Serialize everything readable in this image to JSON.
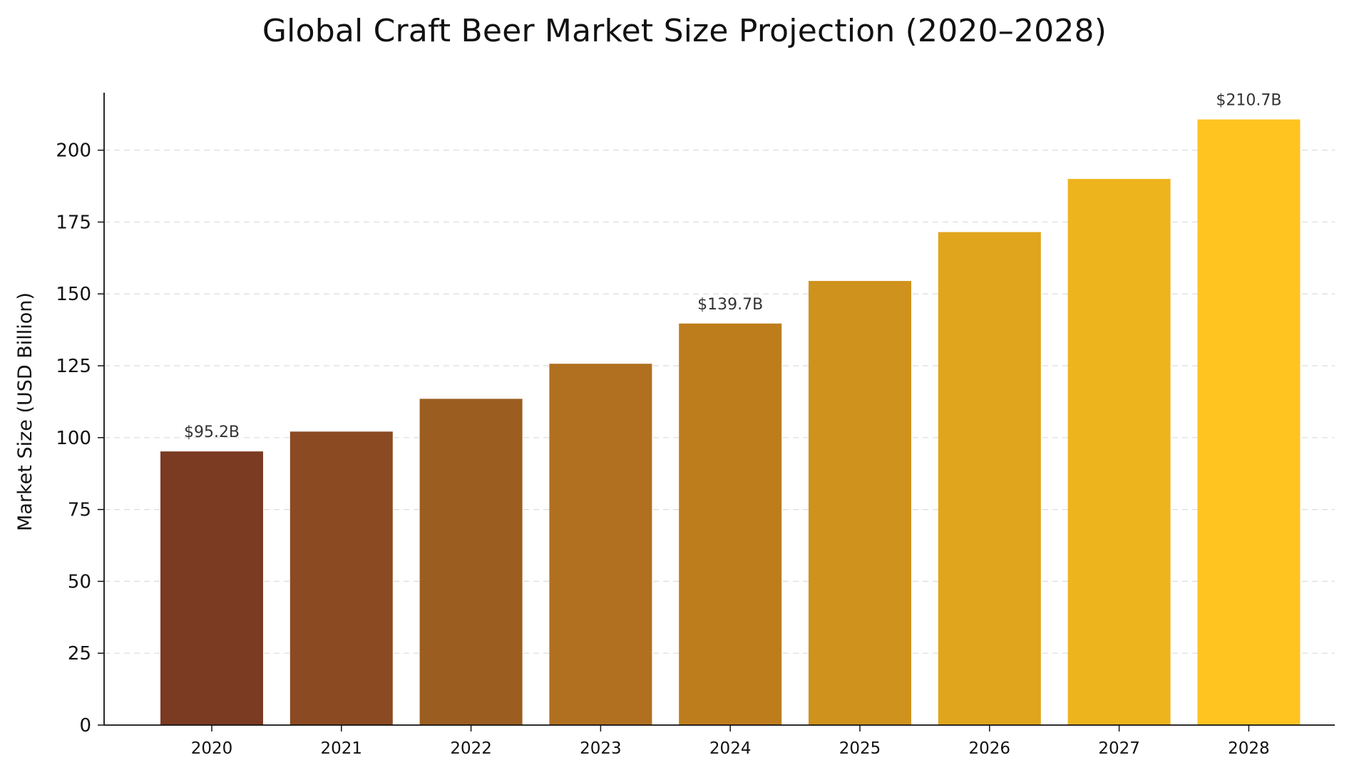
{
  "chart_data": {
    "type": "bar",
    "title": "Global Craft Beer Market Size Projection (2020–2028)",
    "xlabel": "",
    "ylabel": "Market Size (USD Billion)",
    "categories": [
      "2020",
      "2021",
      "2022",
      "2023",
      "2024",
      "2025",
      "2026",
      "2027",
      "2028"
    ],
    "values": [
      95.2,
      102.1,
      113.5,
      125.7,
      139.7,
      154.5,
      171.5,
      190.0,
      210.7
    ],
    "colors": [
      "#7b3a22",
      "#8b4a22",
      "#9c5d20",
      "#b07020",
      "#be7d1c",
      "#cf921c",
      "#e0a51c",
      "#edb41e",
      "#ffc420"
    ],
    "data_labels": [
      {
        "index": 0,
        "text": "$95.2B"
      },
      {
        "index": 4,
        "text": "$139.7B"
      },
      {
        "index": 8,
        "text": "$210.7B"
      }
    ],
    "ylim": [
      0,
      220
    ],
    "yticks": [
      0,
      25,
      50,
      75,
      100,
      125,
      150,
      175,
      200
    ],
    "grid": "horizontal-dashed",
    "legend": "none"
  }
}
